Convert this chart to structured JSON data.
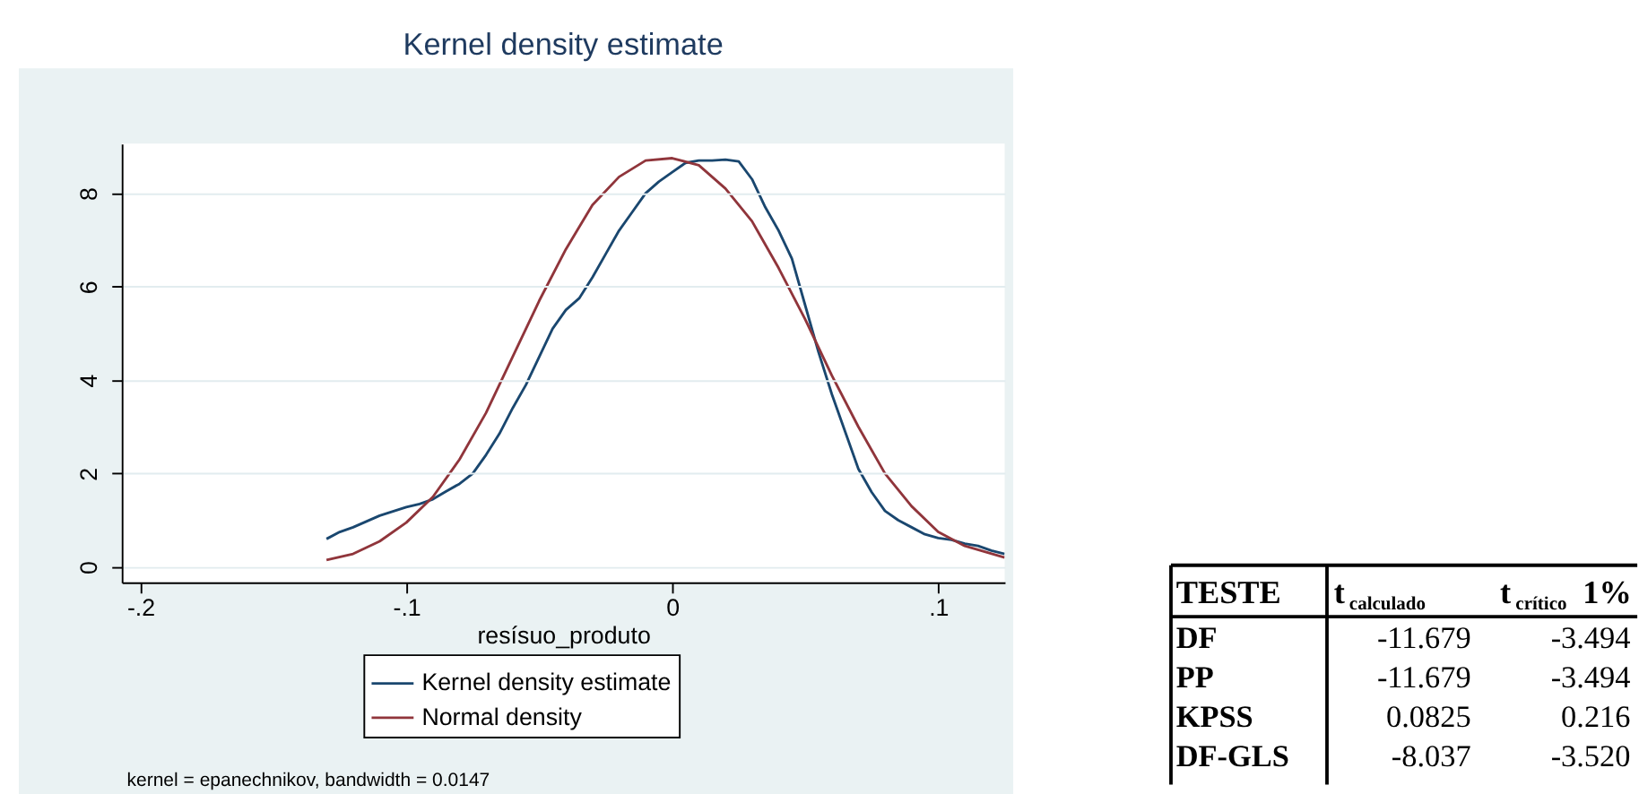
{
  "chart_data": [
    {
      "type": "line",
      "title": "Kernel density estimate",
      "xlabel": "resísuo_produto",
      "xlim": [
        -0.207,
        0.125
      ],
      "xticks": [
        {
          "value": -0.2,
          "label": "-.2"
        },
        {
          "value": -0.1,
          "label": "-.1"
        },
        0,
        {
          "value": 0.1,
          "label": ".1"
        }
      ],
      "ylim": [
        -0.33,
        9.06
      ],
      "yticks": [
        0,
        2,
        4,
        6,
        8
      ],
      "grid": "y",
      "legend": "bottom",
      "line_style": "solid",
      "annotations": [
        "kernel = epanechnikov, bandwidth = 0.0147"
      ],
      "series": [
        {
          "name": "Kernel density estimate",
          "color": "#1a476f",
          "x": [
            -0.13,
            -0.125,
            -0.12,
            -0.11,
            -0.1,
            -0.095,
            -0.09,
            -0.085,
            -0.08,
            -0.075,
            -0.07,
            -0.065,
            -0.06,
            -0.055,
            -0.05,
            -0.045,
            -0.04,
            -0.035,
            -0.03,
            -0.025,
            -0.02,
            -0.015,
            -0.01,
            -0.005,
            0,
            0.005,
            0.01,
            0.015,
            0.02,
            0.025,
            0.03,
            0.035,
            0.04,
            0.045,
            0.05,
            0.055,
            0.06,
            0.065,
            0.07,
            0.075,
            0.08,
            0.085,
            0.09,
            0.095,
            0.1,
            0.105,
            0.11,
            0.115,
            0.12,
            0.125
          ],
          "values": [
            0.6,
            0.75,
            0.85,
            1.1,
            1.28,
            1.35,
            1.45,
            1.62,
            1.78,
            2.0,
            2.4,
            2.85,
            3.4,
            3.9,
            4.5,
            5.1,
            5.5,
            5.75,
            6.2,
            6.7,
            7.2,
            7.6,
            8.0,
            8.25,
            8.45,
            8.65,
            8.7,
            8.7,
            8.72,
            8.68,
            8.3,
            7.7,
            7.2,
            6.6,
            5.6,
            4.6,
            3.7,
            2.9,
            2.1,
            1.6,
            1.2,
            1.0,
            0.85,
            0.7,
            0.62,
            0.58,
            0.5,
            0.45,
            0.35,
            0.28
          ]
        },
        {
          "name": "Normal density",
          "color": "#90353b",
          "x": [
            -0.13,
            -0.12,
            -0.11,
            -0.1,
            -0.09,
            -0.08,
            -0.07,
            -0.06,
            -0.05,
            -0.04,
            -0.03,
            -0.02,
            -0.01,
            0,
            0.01,
            0.02,
            0.03,
            0.04,
            0.05,
            0.06,
            0.07,
            0.08,
            0.09,
            0.1,
            0.11,
            0.125
          ],
          "values": [
            0.15,
            0.28,
            0.55,
            0.95,
            1.5,
            2.3,
            3.3,
            4.5,
            5.7,
            6.8,
            7.75,
            8.35,
            8.7,
            8.75,
            8.6,
            8.1,
            7.4,
            6.4,
            5.3,
            4.1,
            3.0,
            2.0,
            1.3,
            0.75,
            0.45,
            0.2
          ]
        }
      ]
    },
    {
      "type": "other",
      "xlabel": "TESTE",
      "categories": [
        "DF",
        "PP",
        "KPSS",
        "DF-GLS"
      ],
      "series": [
        {
          "name": "t$_{calculado}$",
          "values": [
            -11.679,
            -11.679,
            0.0825,
            -8.037
          ],
          "value_labels": [
            "-11.679",
            "-11.679",
            "0.0825",
            "-8.037"
          ]
        },
        {
          "name": "t$_{crítico}$ 1%",
          "values": [
            -3.494,
            -3.494,
            0.216,
            -3.52
          ],
          "value_labels": [
            "-3.494",
            "-3.494",
            "0.216",
            "-3.520"
          ]
        }
      ]
    }
  ]
}
